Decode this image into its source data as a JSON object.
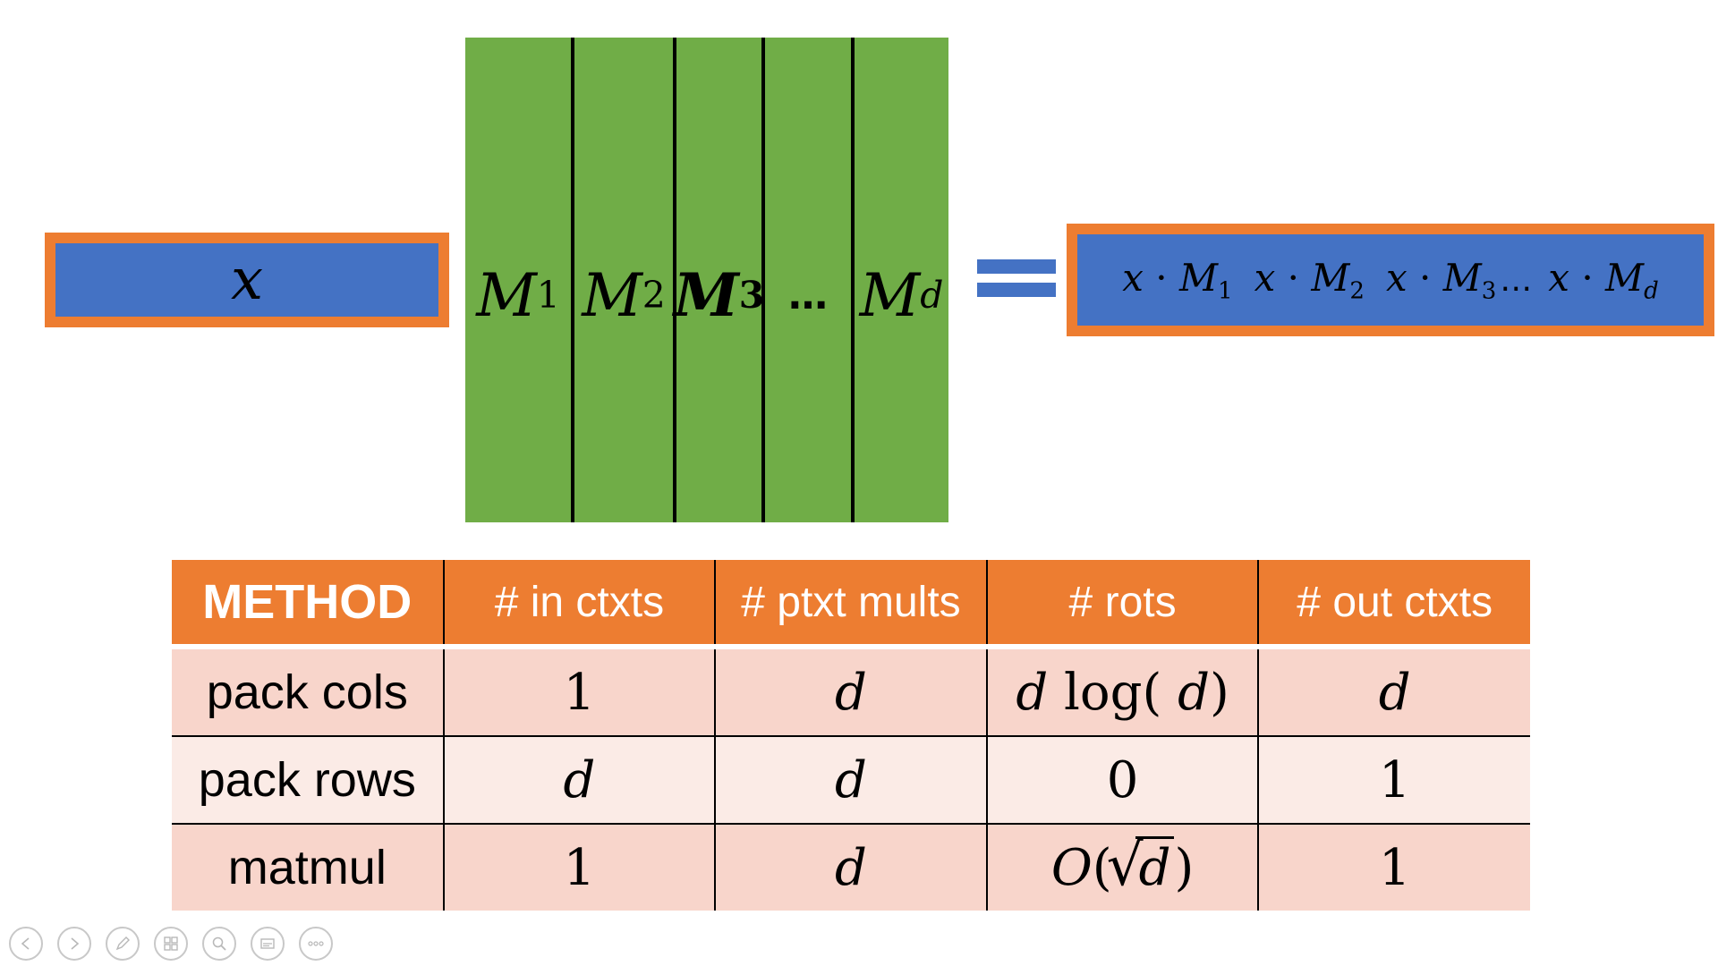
{
  "vector": {
    "symbol": "x"
  },
  "matrix": {
    "columns": [
      {
        "symbol": "M",
        "sub": "1"
      },
      {
        "symbol": "M",
        "sub": "2"
      },
      {
        "symbol": "M",
        "sub": "3",
        "bold": true
      },
      {
        "symbol": "…"
      },
      {
        "symbol": "M",
        "sub": "d"
      }
    ]
  },
  "result": {
    "terms": [
      {
        "x": "x",
        "dot": "·",
        "m": "M",
        "sub": "1"
      },
      {
        "x": "x",
        "dot": "·",
        "m": "M",
        "sub": "2"
      },
      {
        "x": "x",
        "dot": "·",
        "m": "M",
        "sub": "3"
      },
      {
        "x": "x",
        "dot": "·",
        "m": "M",
        "sub": "d"
      }
    ],
    "ellipsis": "…"
  },
  "table": {
    "headers": [
      "METHOD",
      "# in ctxts",
      "# ptxt mults",
      "# rots",
      "# out ctxts"
    ],
    "rows": [
      {
        "method": "pack cols",
        "in": "1",
        "ptxt": "d",
        "rots_coef": "d",
        "rots_fn": "log(",
        "rots_arg": "d",
        "rots_close": ")",
        "out": "d"
      },
      {
        "method": "pack rows",
        "in": "d",
        "ptxt": "d",
        "rots": "0",
        "out": "1"
      },
      {
        "method": "matmul",
        "in": "1",
        "ptxt": "d",
        "rots_o": "O",
        "rots_open": "(",
        "rots_sqrt_arg": "d",
        "rots_close": ")",
        "out": "1"
      }
    ]
  },
  "colors": {
    "orange": "#ed7d31",
    "blue": "#4472c4",
    "green": "#70ad47",
    "row_dark": "#f8d5cb",
    "row_light": "#fbebe6"
  },
  "controls": [
    "prev-icon",
    "next-icon",
    "pen-icon",
    "slides-icon",
    "zoom-icon",
    "subtitles-icon",
    "more-icon"
  ]
}
